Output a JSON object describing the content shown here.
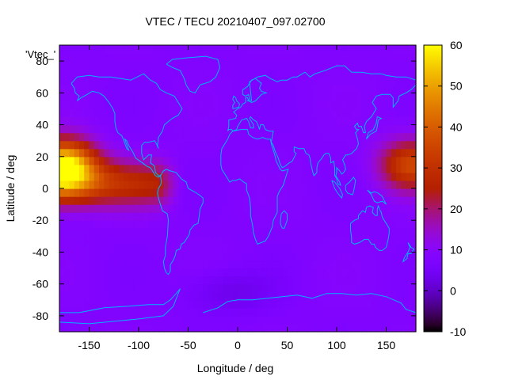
{
  "chart_data": {
    "type": "heatmap",
    "title": "VTEC / TECU 20210407_097.02700",
    "xlabel": "Longitude / deg",
    "ylabel": "Latitude / deg",
    "key_label": "'Vtec_'",
    "xlim": [
      -180,
      180
    ],
    "ylim": [
      -90,
      90
    ],
    "xticks": [
      -150,
      -100,
      -50,
      0,
      50,
      100,
      150
    ],
    "yticks": [
      -80,
      -60,
      -40,
      -20,
      0,
      20,
      40,
      60,
      80
    ],
    "colorbar": {
      "range": [
        -10,
        60
      ],
      "ticks": [
        -10,
        0,
        10,
        20,
        30,
        40,
        50,
        60
      ],
      "palette": "gnuplot-hot"
    },
    "tec_features": {
      "background_tecu": 8,
      "enhancements": [
        {
          "lon": -175,
          "lat": 15,
          "peak_tecu": 57
        },
        {
          "lon": 175,
          "lat": 15,
          "peak_tecu": 35
        }
      ],
      "equatorial_band": {
        "lon_min": -180,
        "lon_max": -55,
        "lat": 3,
        "tecu_west": 34,
        "tecu_east": 24
      },
      "depletion": {
        "lon": -10,
        "lat": -65,
        "min_tecu": 3
      }
    },
    "overlay": "coastlines",
    "overlay_color": "#00b4ff"
  }
}
